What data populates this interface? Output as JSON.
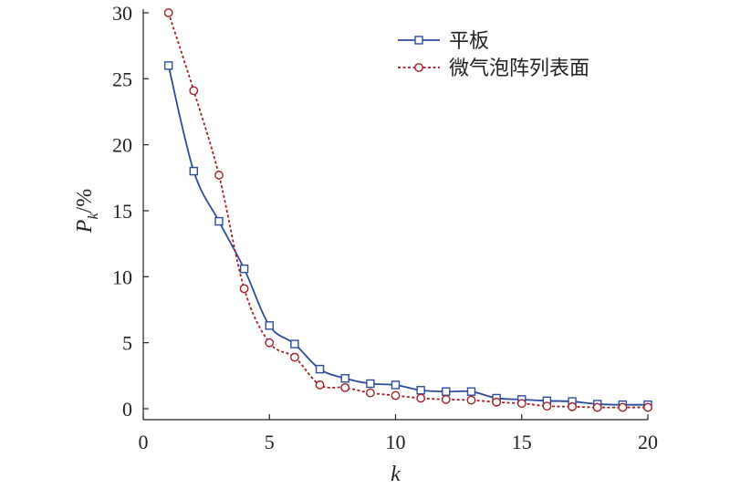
{
  "chart_data": {
    "type": "line",
    "xlabel": "k",
    "ylabel": {
      "main": "P",
      "sub": "k",
      "suffix": "/%"
    },
    "xlim": [
      0,
      20
    ],
    "ylim": [
      0,
      30
    ],
    "xticks": [
      0,
      5,
      10,
      15,
      20
    ],
    "yticks": [
      0,
      5,
      10,
      15,
      20,
      25,
      30
    ],
    "grid": false,
    "legend_position": "top-right",
    "x": [
      1,
      2,
      3,
      4,
      5,
      6,
      7,
      8,
      9,
      10,
      11,
      12,
      13,
      14,
      15,
      16,
      17,
      18,
      19,
      20
    ],
    "series": [
      {
        "name": "平板",
        "color": "#2b4c9b",
        "marker": "square",
        "line_style": "solid",
        "values": [
          26.0,
          18.0,
          14.2,
          10.6,
          6.3,
          4.9,
          3.0,
          2.3,
          1.9,
          1.8,
          1.4,
          1.3,
          1.3,
          0.8,
          0.7,
          0.6,
          0.55,
          0.35,
          0.3,
          0.3
        ]
      },
      {
        "name": "微气泡阵列表面",
        "color": "#a31f24",
        "marker": "circle",
        "line_style": "dashed",
        "values": [
          30.0,
          24.1,
          17.7,
          9.1,
          5.0,
          3.9,
          1.8,
          1.6,
          1.2,
          1.0,
          0.8,
          0.7,
          0.65,
          0.5,
          0.4,
          0.2,
          0.15,
          0.1,
          0.1,
          0.1
        ]
      }
    ]
  }
}
